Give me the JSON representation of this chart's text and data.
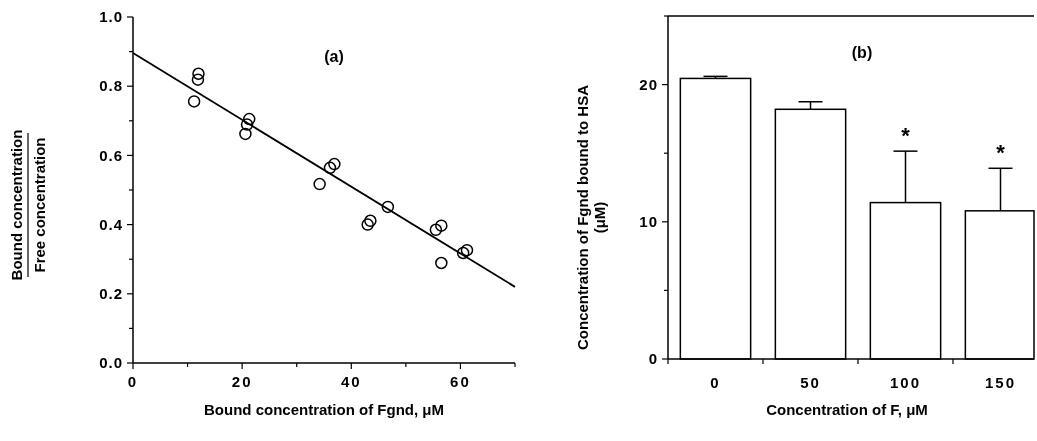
{
  "chart_data": [
    {
      "type": "scatter",
      "title": "(a)",
      "xlabel": "Bound concentration of Fgnd,  μM",
      "ylabel": "Bound concentration\nFree concentration",
      "xlim": [
        0,
        70
      ],
      "xticks": [
        0,
        {
          "value": 10,
          "label": null
        },
        20,
        {
          "value": 30,
          "label": null
        },
        40,
        {
          "value": 50,
          "label": null
        },
        60,
        {
          "value": 70,
          "label": null
        }
      ],
      "ylim": [
        0,
        1
      ],
      "yticks": [
        {
          "value": 0,
          "label": "0.0"
        },
        {
          "value": 0.1,
          "label": null
        },
        0.2,
        {
          "value": 0.3,
          "label": null
        },
        0.4,
        {
          "value": 0.5,
          "label": null
        },
        0.6,
        {
          "value": 0.7,
          "label": null
        },
        0.8,
        {
          "value": 0.9,
          "label": null
        },
        {
          "value": 1,
          "label": "1.0"
        }
      ],
      "series": [
        {
          "type": "scatter",
          "marker": "circle",
          "color": "#000000",
          "x": [
            11.2,
            11.9,
            12.0,
            20.6,
            20.9,
            21.3,
            34.2,
            36.1,
            36.9,
            43.0,
            43.5,
            46.7,
            55.5,
            56.5,
            56.5,
            60.5,
            61.2
          ],
          "values": [
            0.756,
            0.819,
            0.836,
            0.662,
            0.689,
            0.705,
            0.517,
            0.564,
            0.575,
            0.4,
            0.411,
            0.451,
            0.385,
            0.397,
            0.289,
            0.318,
            0.326
          ]
        },
        {
          "type": "line",
          "color": "#000000",
          "x": [
            0,
            70
          ],
          "values": [
            0.896,
            0.22
          ]
        }
      ]
    },
    {
      "type": "bar",
      "title": "(b)",
      "xlabel": "Concentration of F,  μM",
      "ylabel": "Concentration of Fgnd  bound to HSA\n(μM)",
      "categories": [
        "0",
        "50",
        "100",
        "150"
      ],
      "values": [
        20.45,
        18.2,
        11.4,
        10.8
      ],
      "color": "#ffffff",
      "errors": [
        [
          20.45,
          20.6
        ],
        [
          18.2,
          18.75
        ],
        [
          11.4,
          15.15
        ],
        [
          10.8,
          13.9
        ]
      ],
      "ylim": [
        0,
        25
      ],
      "yticks": [
        0,
        {
          "value": 5,
          "label": null
        },
        10,
        {
          "value": 15,
          "label": null
        },
        20,
        {
          "value": 25,
          "label": null
        }
      ],
      "annotations": [
        "*",
        "*"
      ]
    }
  ]
}
